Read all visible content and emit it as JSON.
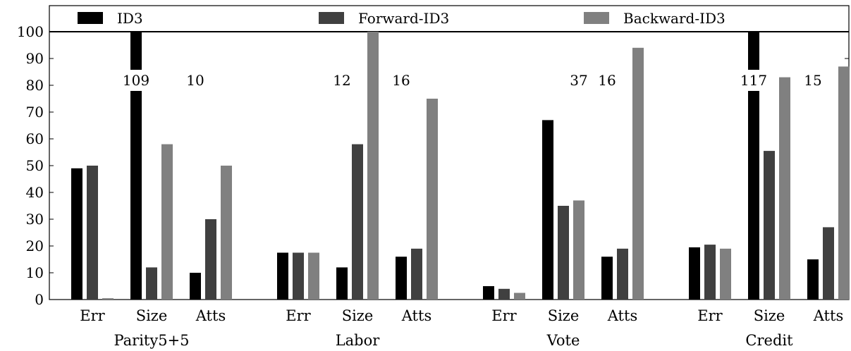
{
  "chart_data": {
    "type": "bar",
    "ylim": [
      0,
      100
    ],
    "yticks": [
      0,
      10,
      20,
      30,
      40,
      50,
      60,
      70,
      80,
      90,
      100
    ],
    "series": [
      {
        "name": "ID3",
        "color": "#000000"
      },
      {
        "name": "Forward-ID3",
        "color": "#404040"
      },
      {
        "name": "Backward-ID3",
        "color": "#808080"
      }
    ],
    "groups": [
      {
        "label": "Parity5+5",
        "metrics": [
          {
            "label": "Err",
            "values": [
              49,
              50,
              0.5
            ],
            "overflow_labels": [
              "",
              "",
              ""
            ]
          },
          {
            "label": "Size",
            "values": [
              109,
              12,
              58
            ],
            "overflow_labels": [
              "109",
              "",
              ""
            ]
          },
          {
            "label": "Atts",
            "values": [
              10,
              30,
              50
            ],
            "overflow_labels": [
              "10",
              "",
              ""
            ]
          }
        ]
      },
      {
        "label": "Labor",
        "metrics": [
          {
            "label": "Err",
            "values": [
              17.5,
              17.5,
              17.5
            ],
            "overflow_labels": [
              "",
              "",
              ""
            ]
          },
          {
            "label": "Size",
            "values": [
              12,
              58,
              100
            ],
            "overflow_labels": [
              "12",
              "",
              ""
            ]
          },
          {
            "label": "Atts",
            "values": [
              16,
              19,
              75
            ],
            "overflow_labels": [
              "16",
              "",
              ""
            ]
          }
        ]
      },
      {
        "label": "Vote",
        "metrics": [
          {
            "label": "Err",
            "values": [
              5,
              4,
              2.5
            ],
            "overflow_labels": [
              "",
              "",
              ""
            ]
          },
          {
            "label": "Size",
            "values": [
              67,
              35,
              37
            ],
            "overflow_labels": [
              "",
              "",
              "37"
            ]
          },
          {
            "label": "Atts",
            "values": [
              16,
              19,
              94
            ],
            "overflow_labels": [
              "16",
              "",
              ""
            ]
          }
        ]
      },
      {
        "label": "Credit",
        "metrics": [
          {
            "label": "Err",
            "values": [
              19.5,
              20.5,
              19
            ],
            "overflow_labels": [
              "",
              "",
              ""
            ]
          },
          {
            "label": "Size",
            "values": [
              117,
              55.5,
              83
            ],
            "overflow_labels": [
              "117",
              "",
              ""
            ]
          },
          {
            "label": "Atts",
            "values": [
              15,
              27,
              87
            ],
            "overflow_labels": [
              "15",
              "",
              ""
            ]
          }
        ]
      }
    ],
    "grid": false,
    "legend_position": "top"
  }
}
